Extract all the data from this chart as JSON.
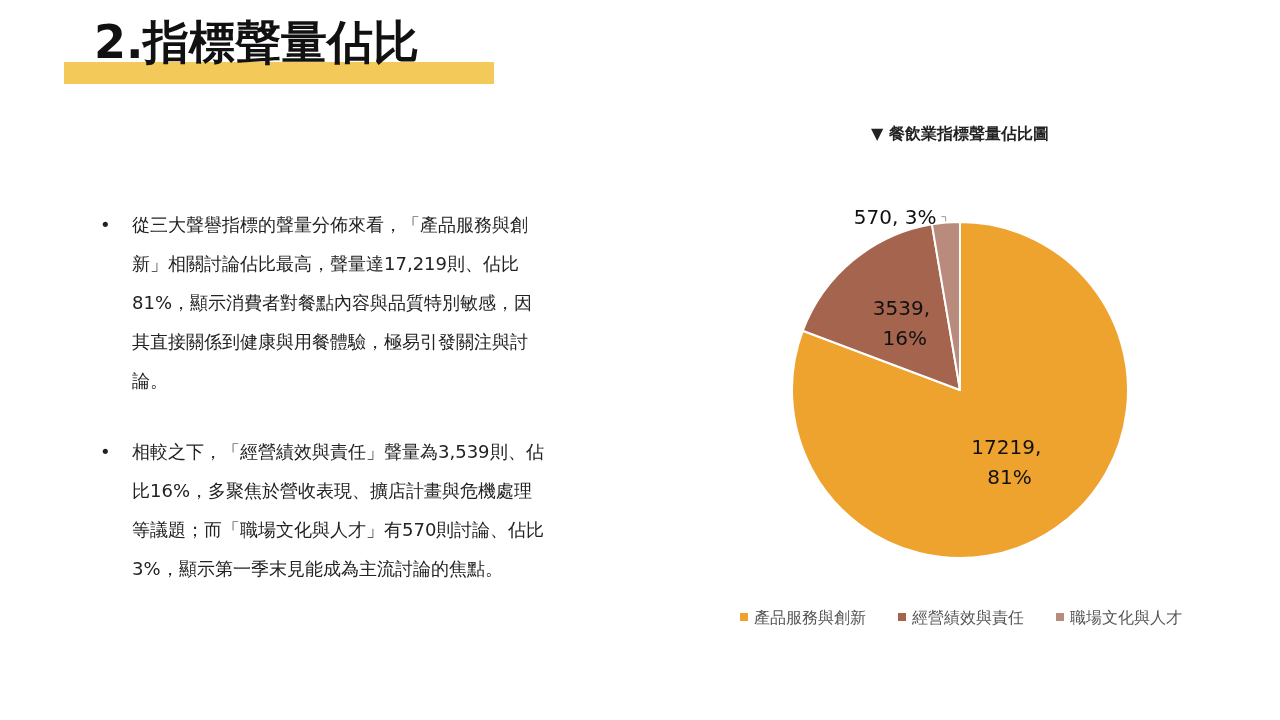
{
  "chart_data": [
    {
      "type": "other",
      "title": "2.指標聲量佔比",
      "annotations": [
        "•從三大聲譽指標的聲量分佈來看，「產品服務與創新」相關討論佔比最高，聲量達17,219則、佔比81%，顯示消費者對餐點內容與品質特別敏感，因其直接關係到健康與用餐體驗，極易引發關注與討論。",
        "•相較之下，「經營績效與責任」聲量為3,539則、佔比16%，多聚焦於營收表現、擴店計畫與危機處理等議題；而「職場文化與人才」有570則討論、佔比3%，顯示第一季末見能成為主流討論的焦點。"
      ]
    },
    {
      "type": "pie",
      "title": "▼ 餐飲業指標聲量佔比圖",
      "categories": [
        "產品服務與創新",
        "經營績效與責任",
        "職場文化與人才"
      ],
      "values": [
        17219,
        3539,
        570
      ],
      "colors": [
        "#eea32f",
        "#a5644e",
        "#b98b7c"
      ],
      "value_labels": [
        "17219, 81%",
        "3539, 16%",
        "570, 3%"
      ],
      "legend": "bottom"
    }
  ]
}
